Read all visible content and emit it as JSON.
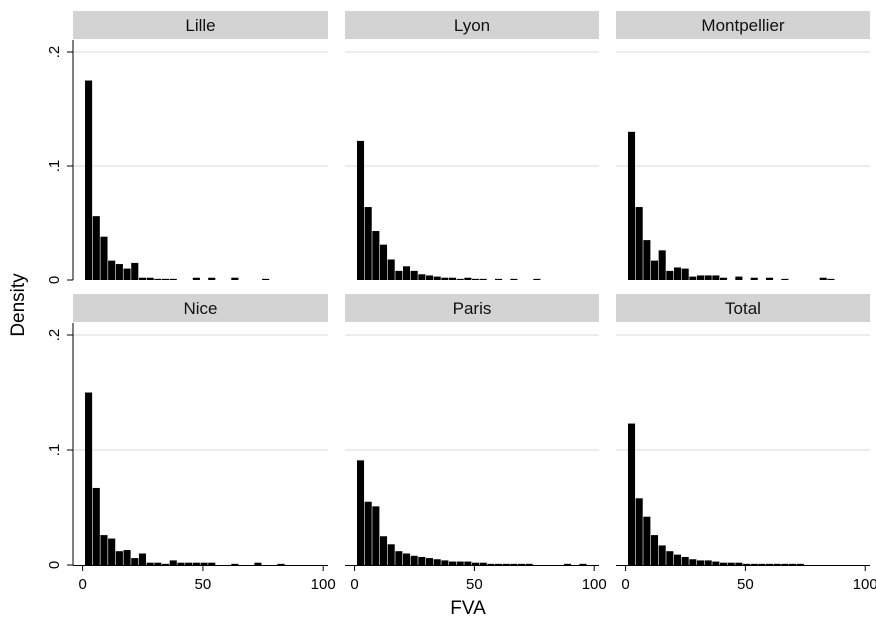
{
  "chart_data": {
    "type": "bar",
    "subtype": "histogram",
    "xlabel": "FVA",
    "ylabel": "Density",
    "xlim": [
      -4,
      102
    ],
    "ylim": [
      0,
      0.21
    ],
    "x_ticks": [
      0,
      50,
      100
    ],
    "x_tick_labels": [
      "0",
      "50",
      "100"
    ],
    "y_ticks": [
      0,
      0.1,
      0.2
    ],
    "y_tick_labels": [
      "0",
      ".1",
      ".2"
    ],
    "grid": true,
    "bin_width": 3.2,
    "bin_start": 1.0,
    "panels": [
      {
        "name": "Lille",
        "values": [
          0.175,
          0.056,
          0.038,
          0.017,
          0.014,
          0.01,
          0.015,
          0.002,
          0.002,
          0.001,
          0.001,
          0.001,
          0,
          0,
          0.002,
          0,
          0.002,
          0,
          0,
          0.002,
          0,
          0,
          0,
          0.001,
          0,
          0,
          0,
          0,
          0,
          0
        ]
      },
      {
        "name": "Lyon",
        "values": [
          0.122,
          0.064,
          0.043,
          0.031,
          0.018,
          0.008,
          0.012,
          0.008,
          0.005,
          0.004,
          0.003,
          0.002,
          0.002,
          0.001,
          0.002,
          0.001,
          0.001,
          0,
          0.001,
          0,
          0.001,
          0,
          0,
          0.001,
          0,
          0,
          0,
          0,
          0,
          0
        ]
      },
      {
        "name": "Montpellier",
        "values": [
          0.13,
          0.064,
          0.035,
          0.017,
          0.026,
          0.008,
          0.011,
          0.01,
          0.003,
          0.004,
          0.004,
          0.004,
          0.002,
          0,
          0.003,
          0,
          0.002,
          0,
          0.002,
          0,
          0.001,
          0,
          0,
          0,
          0,
          0.002,
          0.001,
          0,
          0,
          0
        ]
      },
      {
        "name": "Nice",
        "values": [
          0.15,
          0.067,
          0.026,
          0.023,
          0.012,
          0.013,
          0.006,
          0.01,
          0.002,
          0.002,
          0.001,
          0.004,
          0.002,
          0.002,
          0.002,
          0.002,
          0.002,
          0,
          0,
          0.001,
          0,
          0,
          0.002,
          0,
          0,
          0.001,
          0,
          0,
          0,
          0
        ]
      },
      {
        "name": "Paris",
        "values": [
          0.091,
          0.055,
          0.051,
          0.025,
          0.018,
          0.012,
          0.01,
          0.008,
          0.007,
          0.006,
          0.005,
          0.004,
          0.003,
          0.003,
          0.003,
          0.002,
          0.002,
          0.001,
          0.001,
          0.001,
          0.001,
          0.001,
          0.001,
          0,
          0,
          0,
          0,
          0.001,
          0,
          0.001
        ]
      },
      {
        "name": "Total",
        "values": [
          0.123,
          0.058,
          0.042,
          0.026,
          0.017,
          0.012,
          0.009,
          0.007,
          0.005,
          0.004,
          0.004,
          0.003,
          0.002,
          0.002,
          0.002,
          0.001,
          0.001,
          0.001,
          0.001,
          0.001,
          0.001,
          0.001,
          0.001,
          0,
          0,
          0,
          0,
          0,
          0,
          0
        ]
      }
    ]
  }
}
